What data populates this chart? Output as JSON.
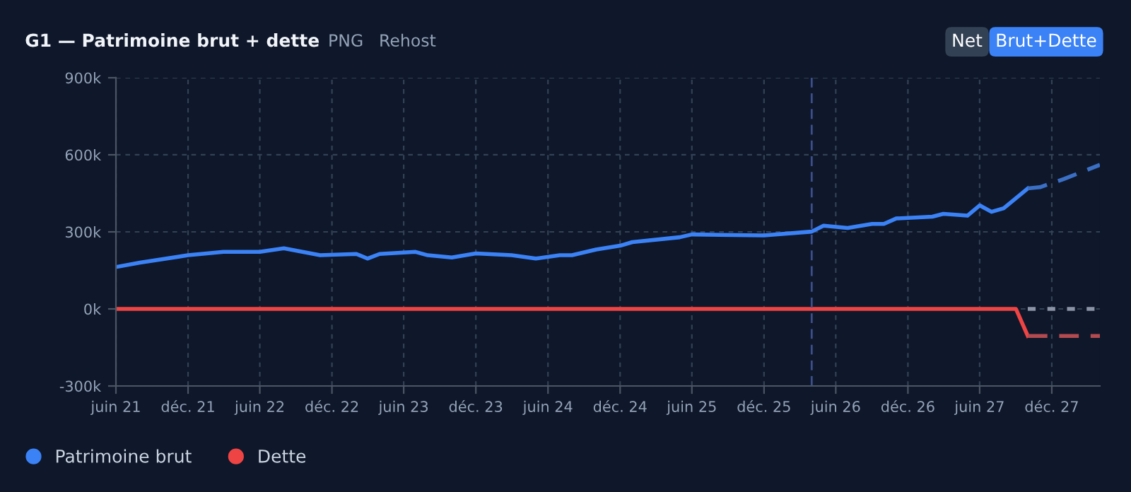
{
  "chart_data": {
    "type": "line",
    "title": "G1 — Patrimoine brut + dette",
    "annotations": [
      "PNG",
      "Rehost",
      "Net",
      "Brut+Dette"
    ],
    "series": [
      {
        "name": "Patrimoine brut",
        "color": "#3b82f6",
        "x": [
          "2021-06",
          "2021-08",
          "2021-12",
          "2022-03",
          "2022-06",
          "2022-08",
          "2022-11",
          "2023-02",
          "2023-03",
          "2023-04",
          "2023-07",
          "2023-08",
          "2023-10",
          "2023-12",
          "2024-03",
          "2024-05",
          "2024-07",
          "2024-08",
          "2024-10",
          "2024-12",
          "2025-01",
          "2025-05",
          "2025-06",
          "2025-12",
          "2026-04",
          "2026-05",
          "2026-07",
          "2026-09",
          "2026-10",
          "2026-11",
          "2027-02",
          "2027-03",
          "2027-05",
          "2027-06",
          "2027-07",
          "2027-08",
          "2027-10"
        ],
        "values": [
          163000,
          180000,
          209000,
          222000,
          222000,
          236000,
          209000,
          214000,
          196000,
          214000,
          222000,
          209000,
          200000,
          216000,
          209000,
          196000,
          209000,
          209000,
          231000,
          246000,
          260000,
          279000,
          290000,
          286000,
          301000,
          324000,
          315000,
          331000,
          331000,
          352000,
          359000,
          370000,
          363000,
          403000,
          378000,
          392000,
          469000
        ]
      },
      {
        "name": "Dette",
        "color": "#ef4444",
        "x": [
          "2021-06",
          "2027-09",
          "2027-10"
        ],
        "values": [
          0,
          0,
          -105000
        ]
      },
      {
        "color": "#3b6fc4",
        "line_style": "dashed",
        "x": [
          "2027-10",
          "2027-11",
          "2028-01",
          "2028-04"
        ],
        "values": [
          469000,
          474000,
          506000,
          561000
        ]
      },
      {
        "color": "#b34a4f",
        "line_style": "dashed",
        "x": [
          "2027-10",
          "2028-04"
        ],
        "values": [
          -105000,
          -105000
        ]
      },
      {
        "color": "#8a94a6",
        "line_style": "dotted",
        "x": [
          "2027-10",
          "2028-04"
        ],
        "values": [
          0,
          0
        ]
      }
    ],
    "ref_lines": [
      {
        "axis": "x",
        "value": "2026-04",
        "color": "#3b4f8a",
        "line_style": "dashed"
      }
    ],
    "xlim": [
      "2021-06",
      "2028-04"
    ],
    "xticks": [
      {
        "value": "2021-06",
        "label": "juin 21"
      },
      {
        "value": "2021-12",
        "label": "déc. 21"
      },
      {
        "value": "2022-06",
        "label": "juin 22"
      },
      {
        "value": "2022-12",
        "label": "déc. 22"
      },
      {
        "value": "2023-06",
        "label": "juin 23"
      },
      {
        "value": "2023-12",
        "label": "déc. 23"
      },
      {
        "value": "2024-06",
        "label": "juin 24"
      },
      {
        "value": "2024-12",
        "label": "déc. 24"
      },
      {
        "value": "2025-06",
        "label": "juin 25"
      },
      {
        "value": "2025-12",
        "label": "déc. 25"
      },
      {
        "value": "2026-06",
        "label": "juin 26"
      },
      {
        "value": "2026-12",
        "label": "déc. 26"
      },
      {
        "value": "2027-06",
        "label": "juin 27"
      },
      {
        "value": "2027-12",
        "label": "déc. 27"
      }
    ],
    "ylim": [
      -300000,
      900000
    ],
    "yticks": [
      {
        "value": -300000,
        "label": "-300k"
      },
      {
        "value": 0,
        "label": "0k"
      },
      {
        "value": 300000,
        "label": "300k"
      },
      {
        "value": 600000,
        "label": "600k"
      },
      {
        "value": 900000,
        "label": "900k"
      }
    ],
    "grid": true,
    "legend": "bottom left",
    "marker": "none",
    "line_style": "solid"
  }
}
